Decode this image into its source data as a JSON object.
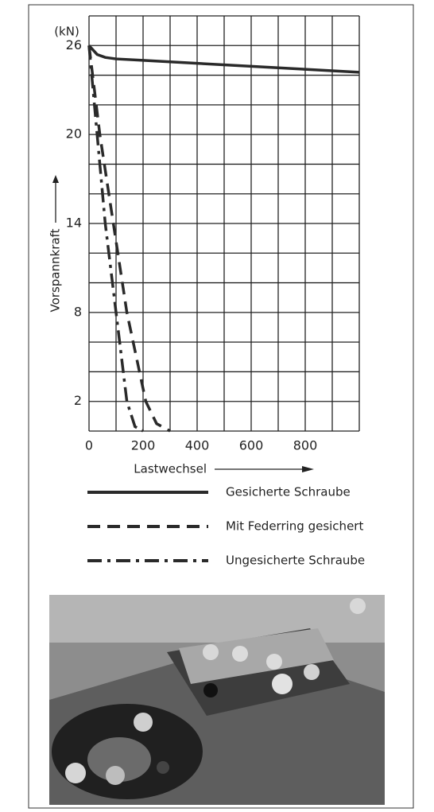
{
  "chart_data": {
    "type": "line",
    "y_unit": "(kN)",
    "ylabel": "Vorspannkraft",
    "xlabel": "Lastwechsel",
    "xlim": [
      0,
      1000
    ],
    "ylim": [
      0,
      28
    ],
    "xticks": [
      0,
      200,
      400,
      600,
      800
    ],
    "yticks": [
      2,
      8,
      14,
      20,
      26
    ],
    "xgrid": [
      0,
      100,
      200,
      300,
      400,
      500,
      600,
      700,
      800,
      900,
      1000
    ],
    "ygrid": [
      0,
      2,
      4,
      6,
      8,
      10,
      12,
      14,
      16,
      18,
      20,
      22,
      24,
      26,
      28
    ],
    "series": [
      {
        "name": "Gesicherte Schraube",
        "color": "#2a2a2a",
        "dash": "solid",
        "x": [
          0,
          30,
          60,
          100,
          200,
          400,
          600,
          800,
          1000
        ],
        "values": [
          26,
          25.4,
          25.2,
          25.1,
          25,
          24.8,
          24.6,
          24.4,
          24.2
        ]
      },
      {
        "name": "Mit Federring gesichert",
        "color": "#2a2a2a",
        "dash": "dashed",
        "x": [
          0,
          40,
          90,
          140,
          210,
          250,
          300
        ],
        "values": [
          26,
          20,
          14,
          8,
          2,
          0.5,
          0
        ]
      },
      {
        "name": "Ungesicherte Schraube",
        "color": "#2a2a2a",
        "dash": "dashdot",
        "x": [
          0,
          30,
          60,
          100,
          140,
          170,
          200
        ],
        "values": [
          26,
          20,
          14,
          8,
          2,
          0.3,
          0
        ]
      }
    ]
  }
}
